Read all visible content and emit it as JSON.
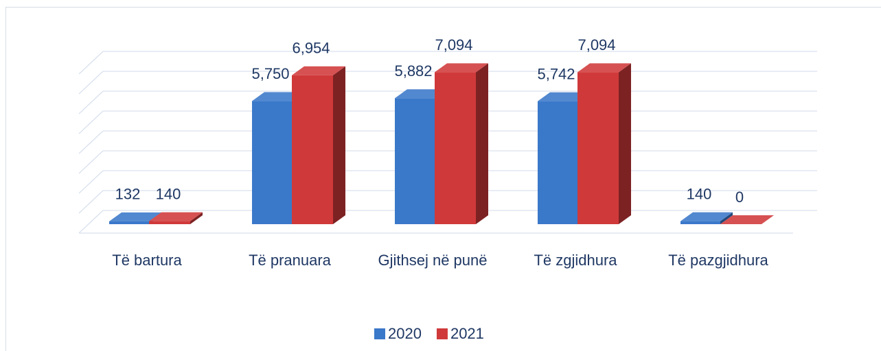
{
  "chart_data": {
    "type": "bar3d",
    "categories": [
      "Të bartura",
      "Të pranuara",
      "Gjithsej në punë",
      "Të zgjidhura",
      "Të pazgjidhura"
    ],
    "series": [
      {
        "name": "2020",
        "color": "#3a78c9",
        "values": [
          132,
          5750,
          5882,
          5742,
          140
        ],
        "value_labels": [
          "132",
          "5,750",
          "5,882",
          "5,742",
          "140"
        ]
      },
      {
        "name": "2021",
        "color": "#d0393a",
        "values": [
          140,
          6954,
          7094,
          7094,
          0
        ],
        "value_labels": [
          "140",
          "6,954",
          "7,094",
          "7,094",
          "0"
        ]
      }
    ],
    "ylim": [
      0,
      8000
    ],
    "yticks": [
      0,
      1000,
      2000,
      3000,
      4000,
      5000,
      6000,
      7000,
      8000
    ],
    "grid": true,
    "legend": "bottom"
  }
}
